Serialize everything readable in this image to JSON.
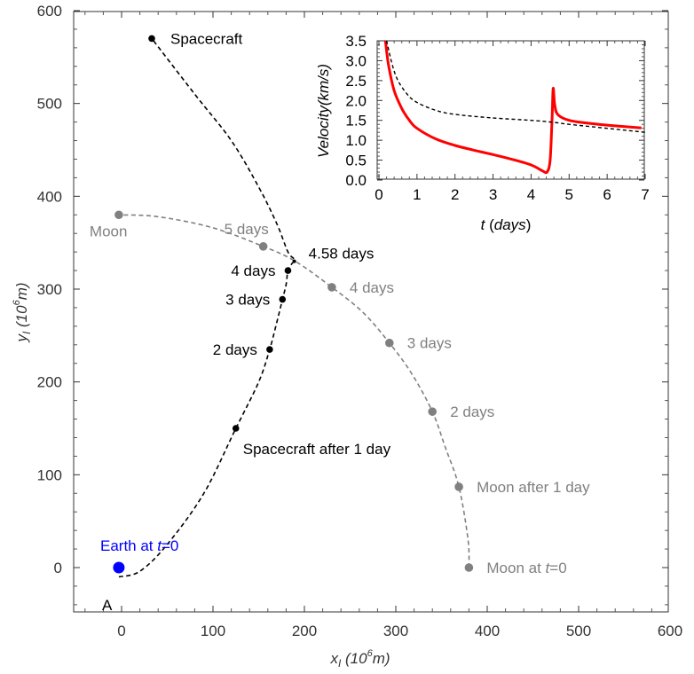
{
  "chart_data": [
    {
      "type": "line",
      "xlabel_var": "x",
      "xlabel_sub": "I",
      "xlabel_unit_pre": " (10",
      "xlabel_unit_exp": "6",
      "xlabel_unit_post": "m)",
      "ylabel_var": "y",
      "ylabel_sub": "I",
      "ylabel_unit_pre": " (10",
      "ylabel_unit_exp": "6",
      "ylabel_unit_post": "m)",
      "xlim": [
        -50,
        600
      ],
      "ylim": [
        -50,
        600
      ],
      "x_ticks": [
        0,
        100,
        200,
        300,
        400,
        500,
        600
      ],
      "y_ticks": [
        0,
        100,
        200,
        300,
        400,
        500,
        600
      ],
      "grid": false,
      "series": [
        {
          "id": "spacecraft",
          "style": "dashed",
          "color": "#000000",
          "points": [
            [
              -3,
              -10
            ],
            [
              20,
              -4
            ],
            [
              50,
              25
            ],
            [
              90,
              80
            ],
            [
              125,
              150
            ],
            [
              150,
              200
            ],
            [
              162,
              235
            ],
            [
              170,
              265
            ],
            [
              176,
              289
            ],
            [
              180,
              305
            ],
            [
              182,
              320
            ],
            [
              186,
              327
            ],
            [
              189,
              332
            ],
            [
              182,
              340
            ],
            [
              170,
              370
            ],
            [
              150,
              410
            ],
            [
              120,
              460
            ],
            [
              80,
              510
            ],
            [
              33,
              570
            ]
          ]
        },
        {
          "id": "moon",
          "style": "dashed",
          "color": "#808080",
          "points": [
            [
              380,
              0
            ],
            [
              379,
              30
            ],
            [
              369,
              87
            ],
            [
              354,
              130
            ],
            [
              340,
              168
            ],
            [
              318,
              208
            ],
            [
              293,
              242
            ],
            [
              264,
              275
            ],
            [
              230,
              302
            ],
            [
              190,
              330
            ],
            [
              155,
              346
            ],
            [
              100,
              366
            ],
            [
              40,
              378
            ],
            [
              -3,
              380
            ]
          ]
        }
      ],
      "markers": [
        {
          "x": 33,
          "y": 570,
          "color": "#000000",
          "size": "small",
          "label": "Spacecraft",
          "label_color": "#000000",
          "anchor": "right"
        },
        {
          "x": 125,
          "y": 150,
          "color": "#000000",
          "size": "small",
          "label": "Spacecraft after 1 day",
          "label_color": "#000000",
          "anchor": "below-right"
        },
        {
          "x": 162,
          "y": 235,
          "color": "#000000",
          "size": "small",
          "label": "2 days",
          "label_color": "#000000",
          "anchor": "left"
        },
        {
          "x": 176,
          "y": 289,
          "color": "#000000",
          "size": "small",
          "label": "3 days",
          "label_color": "#000000",
          "anchor": "left"
        },
        {
          "x": 182,
          "y": 320,
          "color": "#000000",
          "size": "small",
          "label": "4 days",
          "label_color": "#000000",
          "anchor": "left"
        },
        {
          "x": 189,
          "y": 330,
          "color": "#000000",
          "size": "tiny",
          "label": "4.58 days",
          "label_color": "#000000",
          "anchor": "right"
        },
        {
          "x": -3,
          "y": 380,
          "color": "#808080",
          "size": "large",
          "label": "Moon",
          "label_color": "#808080",
          "anchor": "below-left"
        },
        {
          "x": 155,
          "y": 346,
          "color": "#808080",
          "size": "large",
          "label": "5 days",
          "label_color": "#808080",
          "anchor": "above-right"
        },
        {
          "x": 230,
          "y": 302,
          "color": "#808080",
          "size": "large",
          "label": "4 days",
          "label_color": "#808080",
          "anchor": "right"
        },
        {
          "x": 293,
          "y": 242,
          "color": "#808080",
          "size": "large",
          "label": "3 days",
          "label_color": "#808080",
          "anchor": "right"
        },
        {
          "x": 340,
          "y": 168,
          "color": "#808080",
          "size": "large",
          "label": "2 days",
          "label_color": "#808080",
          "anchor": "right"
        },
        {
          "x": 369,
          "y": 87,
          "color": "#808080",
          "size": "large",
          "label": "Moon after 1 day",
          "label_color": "#808080",
          "anchor": "right"
        },
        {
          "x": 380,
          "y": 0,
          "color": "#808080",
          "size": "large",
          "label_pre": "Moon at ",
          "label_var": "t",
          "label_post": "=0",
          "label_color": "#808080",
          "anchor": "right"
        },
        {
          "x": -3,
          "y": 0,
          "color": "#0000ff",
          "size": "earth",
          "label_pre": "Earth at ",
          "label_var": "t",
          "label_post": "=0",
          "label_color": "#0000ff",
          "anchor": "above"
        },
        {
          "x": -3,
          "y": -10,
          "color": "none",
          "size": "none",
          "label": "A",
          "label_color": "#000000",
          "anchor": "below-left"
        }
      ]
    },
    {
      "type": "line",
      "xlabel_var": "t",
      "xlabel_unit": "days",
      "ylabel": "Velocity(km/s)",
      "xlim": [
        0,
        7
      ],
      "ylim": [
        0,
        3.5
      ],
      "x_ticks": [
        0,
        1,
        2,
        3,
        4,
        5,
        6,
        7
      ],
      "y_ticks": [
        0.0,
        0.5,
        1.0,
        1.5,
        2.0,
        2.5,
        3.0,
        3.5
      ],
      "series": [
        {
          "id": "spacecraft-velocity",
          "color": "#ff0000",
          "style": "solid",
          "points": [
            [
              0.17,
              3.5
            ],
            [
              0.25,
              2.9
            ],
            [
              0.4,
              2.25
            ],
            [
              0.6,
              1.8
            ],
            [
              0.8,
              1.5
            ],
            [
              1.0,
              1.3
            ],
            [
              1.5,
              1.03
            ],
            [
              2.0,
              0.87
            ],
            [
              2.5,
              0.75
            ],
            [
              3.0,
              0.64
            ],
            [
              3.5,
              0.52
            ],
            [
              4.0,
              0.38
            ],
            [
              4.3,
              0.23
            ],
            [
              4.42,
              0.2
            ],
            [
              4.5,
              0.5
            ],
            [
              4.55,
              1.5
            ],
            [
              4.58,
              2.3
            ],
            [
              4.62,
              1.9
            ],
            [
              4.7,
              1.65
            ],
            [
              5.0,
              1.5
            ],
            [
              5.5,
              1.43
            ],
            [
              6.0,
              1.38
            ],
            [
              6.5,
              1.34
            ],
            [
              6.9,
              1.31
            ]
          ]
        },
        {
          "id": "moon-velocity",
          "color": "#000000",
          "style": "dashed",
          "points": [
            [
              0.2,
              3.5
            ],
            [
              0.35,
              2.9
            ],
            [
              0.5,
              2.5
            ],
            [
              0.75,
              2.15
            ],
            [
              1.0,
              1.95
            ],
            [
              1.5,
              1.75
            ],
            [
              2.0,
              1.65
            ],
            [
              3.0,
              1.56
            ],
            [
              4.0,
              1.5
            ],
            [
              4.6,
              1.45
            ],
            [
              5.0,
              1.4
            ],
            [
              6.0,
              1.3
            ],
            [
              7.0,
              1.2
            ]
          ]
        }
      ]
    }
  ]
}
